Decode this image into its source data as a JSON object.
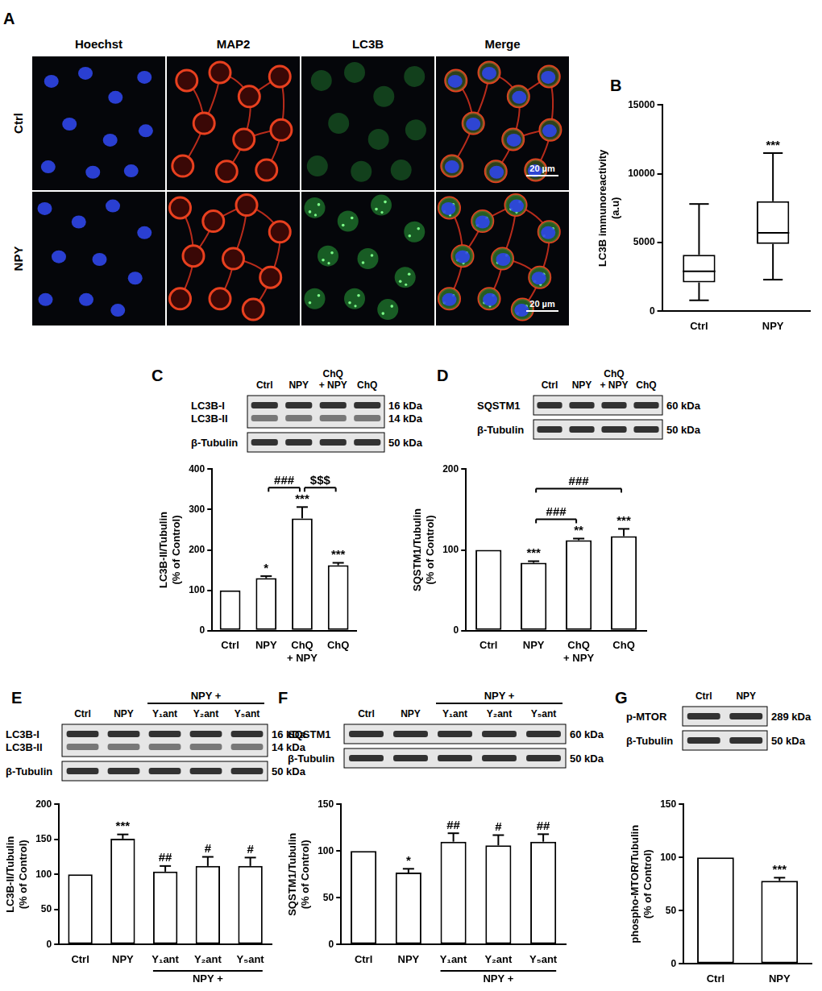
{
  "micrographs": {
    "title": "A",
    "columns": [
      "Hoechst",
      "MAP2",
      "LC3B",
      "Merge"
    ],
    "rows": [
      "Ctrl",
      "NPY"
    ],
    "scale_bar": "20 µm"
  },
  "chart_data": [
    {
      "title": "B",
      "type": "box",
      "categories": [
        "Ctrl",
        "NPY"
      ],
      "boxes": [
        {
          "min": 800,
          "q1": 2100,
          "median": 2900,
          "q3": 4100,
          "max": 7800
        },
        {
          "min": 2300,
          "q1": 4900,
          "median": 5700,
          "q3": 8000,
          "max": 11500
        }
      ],
      "color": "#ffffff",
      "ylabel": "LC3B immunoreactivity\n(a.u)",
      "ylim": [
        0,
        15000
      ],
      "yticks": [
        0,
        5000,
        10000,
        15000
      ],
      "grid": false,
      "annotations": [
        {
          "text": "***",
          "category": "NPY"
        }
      ]
    },
    {
      "title": "C",
      "type": "bar",
      "categories": [
        "Ctrl",
        "NPY",
        "ChQ\n+ NPY",
        "ChQ"
      ],
      "values": [
        100,
        130,
        278,
        162
      ],
      "errors": [
        null,
        5,
        28,
        6
      ],
      "color": "#ffffff",
      "ylabel": "LC3B-II/Tubulin\n(% of Control)",
      "ylim": [
        0,
        400
      ],
      "yticks": [
        0,
        100,
        200,
        300,
        400
      ],
      "grid": false,
      "annotations": [
        {
          "text": "*",
          "category": "NPY"
        },
        {
          "text": "***",
          "category": "ChQ\n+ NPY"
        },
        {
          "text": "***",
          "category": "ChQ"
        }
      ],
      "brackets": [
        {
          "text": "###",
          "from": "NPY",
          "to": "ChQ\n+ NPY"
        },
        {
          "text": "$$$",
          "from": "ChQ\n+ NPY",
          "to": "ChQ"
        }
      ],
      "blot": {
        "lanes": [
          "Ctrl",
          "NPY",
          "ChQ\n+ NPY",
          "ChQ"
        ],
        "strips": [
          [
            {
              "label": "LC3B-I",
              "size": "16 kDa"
            },
            {
              "label": "LC3B-II",
              "size": "14 kDa"
            }
          ],
          [
            {
              "label": "β-Tubulin",
              "size": "50 kDa"
            }
          ]
        ]
      }
    },
    {
      "title": "D",
      "type": "bar",
      "categories": [
        "Ctrl",
        "NPY",
        "ChQ\n+ NPY",
        "ChQ"
      ],
      "values": [
        100,
        84,
        112,
        117
      ],
      "errors": [
        null,
        2,
        2,
        9
      ],
      "color": "#ffffff",
      "ylabel": "SQSTM1/Tubulin\n(% of Control)",
      "ylim": [
        0,
        200
      ],
      "yticks": [
        0,
        100,
        200
      ],
      "grid": false,
      "annotations": [
        {
          "text": "***",
          "category": "NPY"
        },
        {
          "text": "**",
          "category": "ChQ\n+ NPY"
        },
        {
          "text": "***",
          "category": "ChQ"
        }
      ],
      "brackets": [
        {
          "text": "###",
          "from": "NPY",
          "to": "ChQ\n+ NPY"
        },
        {
          "text": "###",
          "from": "NPY",
          "to": "ChQ"
        }
      ],
      "blot": {
        "lanes": [
          "Ctrl",
          "NPY",
          "ChQ\n+ NPY",
          "ChQ"
        ],
        "strips": [
          [
            {
              "label": "SQSTM1",
              "size": "60 kDa"
            }
          ],
          [
            {
              "label": "β-Tubulin",
              "size": "50 kDa"
            }
          ]
        ]
      }
    },
    {
      "title": "E",
      "type": "bar",
      "categories": [
        "Ctrl",
        "NPY",
        "Y₁ant",
        "Y₂ant",
        "Y₅ant"
      ],
      "values": [
        100,
        151,
        104,
        112,
        112
      ],
      "errors": [
        null,
        6,
        8,
        13,
        12
      ],
      "color": "#ffffff",
      "ylabel": "LC3B-II/Tubulin\n(% of Control)",
      "ylim": [
        0,
        200
      ],
      "yticks": [
        0,
        50,
        100,
        150,
        200
      ],
      "grid": false,
      "annotations": [
        {
          "text": "***",
          "category": "NPY"
        },
        {
          "text": "##",
          "category": "Y₁ant"
        },
        {
          "text": "#",
          "category": "Y₂ant"
        },
        {
          "text": "#",
          "category": "Y₅ant"
        }
      ],
      "group_label": {
        "text": "NPY +",
        "from": "Y₁ant",
        "to": "Y₅ant"
      },
      "blot": {
        "lanes": [
          "Ctrl",
          "NPY",
          "Y₁ant",
          "Y₂ant",
          "Y₅ant"
        ],
        "lane_group": {
          "text": "NPY +",
          "from": "Y₁ant",
          "to": "Y₅ant"
        },
        "strips": [
          [
            {
              "label": "LC3B-I",
              "size": "16 kDa"
            },
            {
              "label": "LC3B-II",
              "size": "14 kDa"
            }
          ],
          [
            {
              "label": "β-Tubulin",
              "size": "50 kDa"
            }
          ]
        ]
      }
    },
    {
      "title": "F",
      "type": "bar",
      "categories": [
        "Ctrl",
        "NPY",
        "Y₁ant",
        "Y₂ant",
        "Y₅ant"
      ],
      "values": [
        100,
        77,
        110,
        106,
        110
      ],
      "errors": [
        null,
        4,
        9,
        11,
        8
      ],
      "color": "#ffffff",
      "ylabel": "SQSTM1/Tubulin\n(% of Control)",
      "ylim": [
        0,
        150
      ],
      "yticks": [
        0,
        50,
        100,
        150
      ],
      "grid": false,
      "annotations": [
        {
          "text": "*",
          "category": "NPY"
        },
        {
          "text": "##",
          "category": "Y₁ant"
        },
        {
          "text": "#",
          "category": "Y₂ant"
        },
        {
          "text": "##",
          "category": "Y₅ant"
        }
      ],
      "group_label": {
        "text": "NPY +",
        "from": "Y₁ant",
        "to": "Y₅ant"
      },
      "blot": {
        "lanes": [
          "Ctrl",
          "NPY",
          "Y₁ant",
          "Y₂ant",
          "Y₅ant"
        ],
        "lane_group": {
          "text": "NPY +",
          "from": "Y₁ant",
          "to": "Y₅ant"
        },
        "strips": [
          [
            {
              "label": "SQSTM1",
              "size": "60 kDa"
            }
          ],
          [
            {
              "label": "β-Tubulin",
              "size": "50 kDa"
            }
          ]
        ]
      }
    },
    {
      "title": "G",
      "type": "bar",
      "categories": [
        "Ctrl",
        "NPY"
      ],
      "values": [
        100,
        78
      ],
      "errors": [
        null,
        3
      ],
      "color": "#ffffff",
      "ylabel": "phospho-MTOR/Tubulin\n(% of Control)",
      "ylim": [
        0,
        150
      ],
      "yticks": [
        0,
        50,
        100,
        150
      ],
      "grid": false,
      "annotations": [
        {
          "text": "***",
          "category": "NPY"
        }
      ],
      "blot": {
        "lanes": [
          "Ctrl",
          "NPY"
        ],
        "strips": [
          [
            {
              "label": "p-MTOR",
              "size": "289 kDa"
            }
          ],
          [
            {
              "label": "β-Tubulin",
              "size": "50 kDa"
            }
          ]
        ]
      }
    }
  ]
}
